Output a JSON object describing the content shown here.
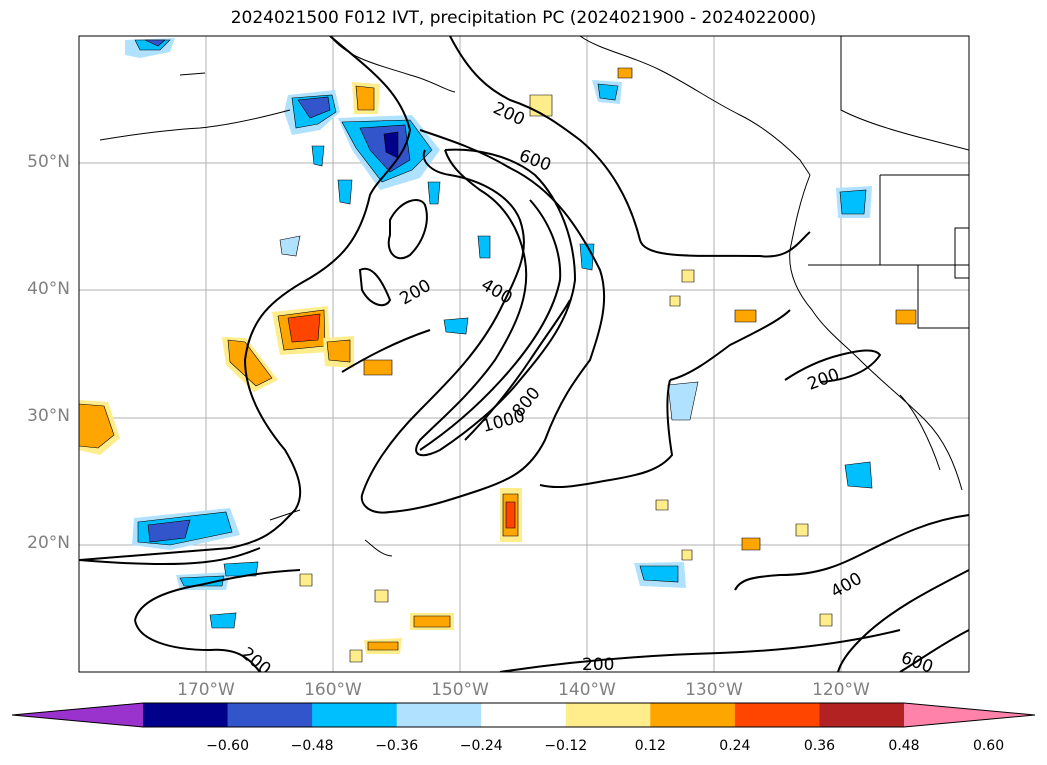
{
  "title": "2024021500 F012 IVT, precipitation PC (2024021900 - 2024022000)",
  "map": {
    "lat_labels": [
      "50°N",
      "40°N",
      "30°N",
      "20°N"
    ],
    "lon_labels": [
      "170°W",
      "160°W",
      "150°W",
      "140°W",
      "130°W",
      "120°W"
    ],
    "contour_labels": [
      "200",
      "600",
      "200",
      "400",
      "1000",
      "800",
      "200",
      "400",
      "600",
      "200",
      "200"
    ]
  },
  "colorbar": {
    "colors": [
      "#9a32cd",
      "#00008b",
      "#3355cc",
      "#00bfff",
      "#b0e2ff",
      "#ffffff",
      "#ffec8b",
      "#ffa500",
      "#ff4500",
      "#b22222",
      "#ff82ab"
    ],
    "ticks": [
      "−0.60",
      "−0.48",
      "−0.36",
      "−0.24",
      "−0.12",
      "0.12",
      "0.24",
      "0.36",
      "0.48",
      "0.60"
    ]
  },
  "chart_data": {
    "type": "map",
    "title": "2024021500 F012 IVT, precipitation PC (2024021900 - 2024022000)",
    "lon_range": [
      -180,
      -110
    ],
    "lat_range": [
      10,
      60
    ],
    "grid": true,
    "ivt_contour_levels": [
      200,
      400,
      600,
      800,
      1000
    ],
    "colorbar_levels": [
      -0.6,
      -0.48,
      -0.36,
      -0.24,
      -0.12,
      0.12,
      0.24,
      0.36,
      0.48,
      0.6
    ],
    "colorbar_extend": "both"
  }
}
